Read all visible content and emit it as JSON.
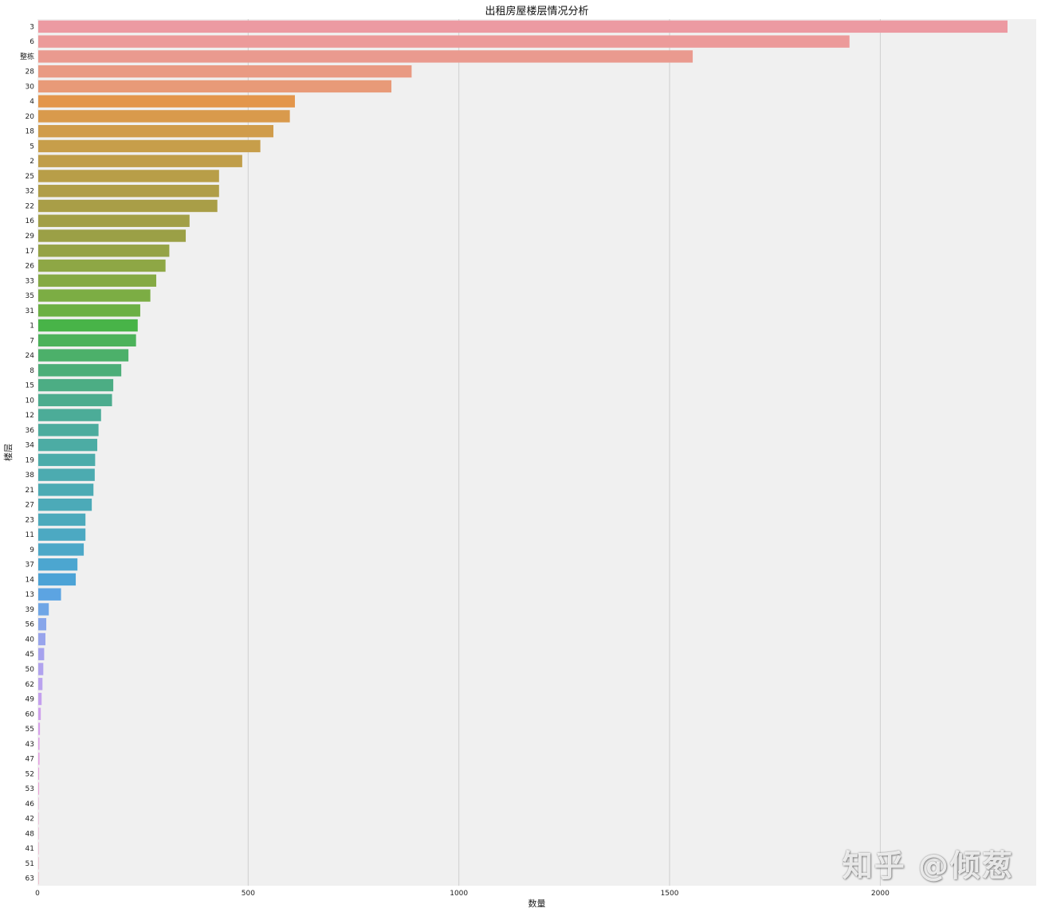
{
  "watermark": "知乎 @倾葱",
  "chart_data": {
    "type": "bar",
    "orientation": "horizontal",
    "title": "出租房屋楼层情况分析",
    "xlabel": "数量",
    "ylabel": "楼层",
    "xlim": [
      0,
      2370
    ],
    "xticks": [
      0,
      500,
      1000,
      1500,
      2000
    ],
    "grid": "vertical",
    "legend": "none",
    "background": "#f0f0f0",
    "categories": [
      "3",
      "6",
      "整栋",
      "28",
      "30",
      "4",
      "20",
      "18",
      "5",
      "2",
      "25",
      "32",
      "22",
      "16",
      "29",
      "17",
      "26",
      "33",
      "35",
      "31",
      "1",
      "7",
      "24",
      "8",
      "15",
      "10",
      "12",
      "36",
      "34",
      "19",
      "38",
      "21",
      "27",
      "23",
      "11",
      "9",
      "37",
      "14",
      "13",
      "39",
      "56",
      "40",
      "45",
      "50",
      "62",
      "49",
      "60",
      "55",
      "43",
      "47",
      "52",
      "53",
      "46",
      "42",
      "48",
      "41",
      "51",
      "63"
    ],
    "values": [
      2300,
      1925,
      1553,
      886,
      838,
      609,
      597,
      558,
      527,
      484,
      429,
      429,
      425,
      359,
      350,
      311,
      302,
      280,
      266,
      242,
      236,
      232,
      214,
      197,
      178,
      175,
      149,
      143,
      140,
      135,
      134,
      131,
      127,
      112,
      112,
      108,
      93,
      89,
      54,
      25,
      19,
      17,
      14,
      12,
      10,
      8,
      6,
      4,
      3,
      3,
      2,
      2,
      1,
      1,
      1,
      1,
      1,
      1
    ],
    "colors": [
      "#ec9aa2",
      "#ec9a9a",
      "#ea9a8f",
      "#e99a83",
      "#e89a78",
      "#e3964c",
      "#d99a4c",
      "#d09c4b",
      "#c79e4a",
      "#c09e4a",
      "#b89e48",
      "#b09e48",
      "#a99e47",
      "#a29f47",
      "#9ba046",
      "#95a346",
      "#8ea745",
      "#85aa44",
      "#7cad44",
      "#6cb044",
      "#48b448",
      "#4cb25a",
      "#4cb06a",
      "#4cae78",
      "#4cad84",
      "#4cac8e",
      "#4cac98",
      "#4cac9e",
      "#4caca4",
      "#4cacaa",
      "#4cabb0",
      "#4cabb4",
      "#4caab8",
      "#4caabc",
      "#4ca9c2",
      "#4ca8c8",
      "#4ca6d0",
      "#4ca3d6",
      "#5ca4e2",
      "#6fa6e6",
      "#88a6ea",
      "#98a4ec",
      "#a6a2ee",
      "#b0a2ee",
      "#baa2ee",
      "#c4a0ee",
      "#cea0ec",
      "#d6a0ea",
      "#dea0e6",
      "#e4a0e2",
      "#e8a0dc",
      "#eaa0d6",
      "#eaa0d0",
      "#eaa0cc",
      "#eaa0c6",
      "#eaa0c0",
      "#eaa0ba",
      "#eaa0b4"
    ]
  }
}
